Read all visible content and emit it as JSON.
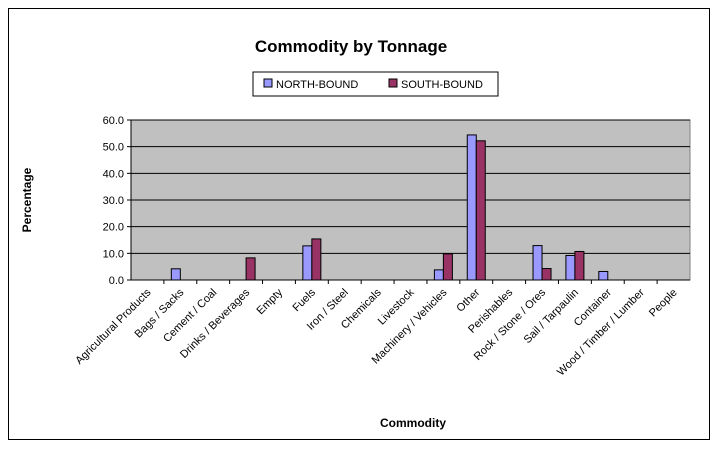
{
  "chart_data": {
    "type": "bar",
    "title": "Commodity by Tonnage",
    "xlabel": "Commodity",
    "ylabel": "Percentage",
    "ylim": [
      0,
      60
    ],
    "yticks": [
      "0.0",
      "10.0",
      "20.0",
      "30.0",
      "40.0",
      "50.0",
      "60.0"
    ],
    "grid": true,
    "legend_position": "top-center",
    "plot_background": "#c0c0c0",
    "categories": [
      "Agricultural Products",
      "Bags / Sacks",
      "Cement / Coal",
      "Drinks / Beverages",
      "Empty",
      "Fuels",
      "Iron / Steel",
      "Chemicals",
      "Livestock",
      "Machinery / Vehicles",
      "Other",
      "Perishables",
      "Rock / Stone / Ores",
      "Sail / Tarpaulin",
      "Container",
      "Wood / Timber / Lumber",
      "People"
    ],
    "series": [
      {
        "name": "NORTH-BOUND",
        "color": "#9999ff",
        "values": [
          0,
          4.2,
          0,
          0,
          0,
          12.8,
          0,
          0,
          0,
          3.8,
          54.4,
          0,
          12.9,
          9.2,
          3.2,
          0,
          0
        ]
      },
      {
        "name": "SOUTH-BOUND",
        "color": "#993366",
        "values": [
          0,
          0,
          0,
          8.3,
          0,
          15.4,
          0,
          0,
          0,
          9.8,
          52.2,
          0,
          4.3,
          10.7,
          0,
          0,
          0
        ]
      }
    ]
  }
}
